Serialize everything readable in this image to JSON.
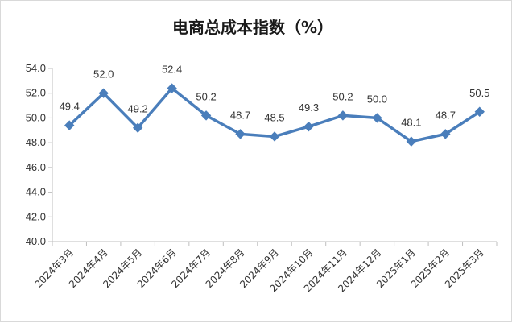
{
  "chart_data": {
    "type": "line",
    "title": "电商总成本指数（%）",
    "xlabel": "",
    "ylabel": "",
    "categories": [
      "2024年3月",
      "2024年4月",
      "2024年5月",
      "2024年6月",
      "2024年7月",
      "2024年8月",
      "2024年9月",
      "2024年10月",
      "2024年11月",
      "2024年12月",
      "2025年1月",
      "2025年2月",
      "2025年3月"
    ],
    "series": [
      {
        "values": [
          49.4,
          52.0,
          49.2,
          52.4,
          50.2,
          48.7,
          48.5,
          49.3,
          50.2,
          50.0,
          48.1,
          48.7,
          50.5
        ],
        "labels": [
          "49.4",
          "52.0",
          "49.2",
          "52.4",
          "50.2",
          "48.7",
          "48.5",
          "49.3",
          "50.2",
          "50.0",
          "48.1",
          "48.7",
          "50.5"
        ],
        "color": "#4A7EBB",
        "marker": "diamond"
      }
    ],
    "ylim": [
      40.0,
      54.0
    ],
    "yticks": [
      "40.0",
      "42.0",
      "44.0",
      "46.0",
      "48.0",
      "50.0",
      "52.0",
      "54.0"
    ],
    "grid": false,
    "legend": "none"
  }
}
